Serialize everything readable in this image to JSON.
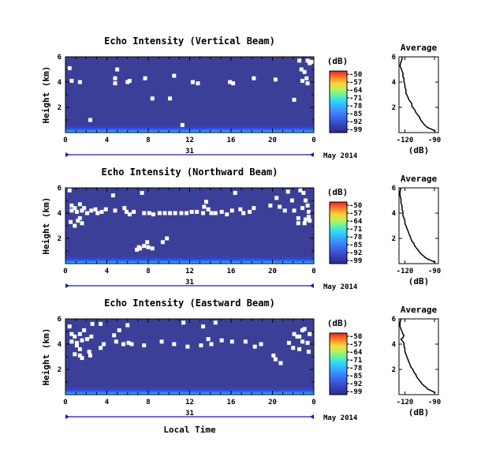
{
  "colors": {
    "background_fill": "#3b3f98",
    "surface_band": [
      "#2f45d8",
      "#2f7fff",
      "#35d7ff"
    ],
    "dropouts": "#ffffff",
    "colormap": [
      "#2b2b8a",
      "#3542b9",
      "#3a67ef",
      "#3b96ff",
      "#2fd2ff",
      "#59f2b5",
      "#b9f25c",
      "#ffd33b",
      "#ff7d26",
      "#e52222"
    ]
  },
  "chart_data": [
    {
      "type": "heatmap",
      "title": "Echo Intensity (Vertical Beam)",
      "xlabel": "",
      "ylabel": "Height (km)",
      "x_ticks": [
        "0",
        "4",
        "8",
        "12",
        "16",
        "20",
        "0"
      ],
      "y_ticks": [
        "2",
        "4",
        "6"
      ],
      "xlim": [
        0,
        24
      ],
      "ylim": [
        0,
        6
      ],
      "date_axis": {
        "day": "31",
        "label": "May 2014"
      },
      "colorbar": {
        "unit": "(dB)",
        "ticks": [
          "-50",
          "-57",
          "-64",
          "-71",
          "-78",
          "-85",
          "-92",
          "-99"
        ],
        "range": [
          -99,
          -50
        ]
      },
      "description_values": {
        "background_db": -97,
        "near_surface_max_db": -82,
        "surface_layer_top_km": 0.6
      },
      "gaps": [
        [
          0.4,
          5.1
        ],
        [
          0.6,
          4.1
        ],
        [
          1.4,
          4.0
        ],
        [
          4.8,
          3.9
        ],
        [
          5.0,
          5.0
        ],
        [
          4.8,
          4.3
        ],
        [
          6.0,
          4.0
        ],
        [
          6.2,
          4.1
        ],
        [
          7.7,
          4.3
        ],
        [
          10.5,
          4.5
        ],
        [
          12.3,
          4.0
        ],
        [
          12.8,
          3.9
        ],
        [
          15.9,
          4.0
        ],
        [
          16.2,
          3.9
        ],
        [
          18.2,
          4.3
        ],
        [
          20.3,
          4.2
        ],
        [
          22.1,
          2.6
        ],
        [
          22.6,
          5.7
        ],
        [
          22.8,
          5.0
        ],
        [
          23.1,
          4.8
        ],
        [
          23.3,
          4.3
        ],
        [
          22.9,
          4.1
        ],
        [
          23.4,
          3.9
        ],
        [
          23.6,
          5.6
        ],
        [
          23.6,
          5.5
        ],
        [
          23.4,
          5.7
        ],
        [
          23.8,
          5.6
        ],
        [
          11.3,
          0.6
        ],
        [
          8.4,
          2.7
        ],
        [
          10.1,
          2.7
        ],
        [
          2.4,
          1.0
        ]
      ]
    },
    {
      "type": "heatmap",
      "title": "Echo Intensity (Northward Beam)",
      "xlabel": "",
      "ylabel": "Height (km)",
      "x_ticks": [
        "0",
        "4",
        "8",
        "12",
        "16",
        "20",
        "0"
      ],
      "y_ticks": [
        "2",
        "4",
        "6"
      ],
      "xlim": [
        0,
        24
      ],
      "ylim": [
        0,
        6
      ],
      "date_axis": {
        "day": "31",
        "label": "May 2014"
      },
      "colorbar": {
        "unit": "(dB)",
        "ticks": [
          "-50",
          "-57",
          "-64",
          "-71",
          "-78",
          "-85",
          "-92",
          "-99"
        ],
        "range": [
          -99,
          -50
        ]
      },
      "description_values": {
        "background_db": -97,
        "near_surface_max_db": -82,
        "surface_layer_top_km": 0.6
      },
      "gaps": [
        [
          0.4,
          5.8
        ],
        [
          0.6,
          4.6
        ],
        [
          0.6,
          4.2
        ],
        [
          0.9,
          4.4
        ],
        [
          1.1,
          4.1
        ],
        [
          1.4,
          4.7
        ],
        [
          1.6,
          4.2
        ],
        [
          1.8,
          4.4
        ],
        [
          2.1,
          4.0
        ],
        [
          2.5,
          4.2
        ],
        [
          2.9,
          4.3
        ],
        [
          3.1,
          4.0
        ],
        [
          3.5,
          4.1
        ],
        [
          3.9,
          4.3
        ],
        [
          1.4,
          3.6
        ],
        [
          1.6,
          3.2
        ],
        [
          1.2,
          3.4
        ],
        [
          0.9,
          3.0
        ],
        [
          0.5,
          3.3
        ],
        [
          4.6,
          5.4
        ],
        [
          4.8,
          4.2
        ],
        [
          5.7,
          4.4
        ],
        [
          5.9,
          4.1
        ],
        [
          6.2,
          3.9
        ],
        [
          6.6,
          4.1
        ],
        [
          7.4,
          5.6
        ],
        [
          7.6,
          4.0
        ],
        [
          8.1,
          4.0
        ],
        [
          8.5,
          3.9
        ],
        [
          9.1,
          4.0
        ],
        [
          9.6,
          4.0
        ],
        [
          10.1,
          4.0
        ],
        [
          10.6,
          4.0
        ],
        [
          11.2,
          4.0
        ],
        [
          11.7,
          4.0
        ],
        [
          12.2,
          4.1
        ],
        [
          12.7,
          4.1
        ],
        [
          13.3,
          4.0
        ],
        [
          13.4,
          4.5
        ],
        [
          13.6,
          4.9
        ],
        [
          13.8,
          4.3
        ],
        [
          14.1,
          4.0
        ],
        [
          14.5,
          4.0
        ],
        [
          15.1,
          4.1
        ],
        [
          15.6,
          3.9
        ],
        [
          16.1,
          4.2
        ],
        [
          16.4,
          5.6
        ],
        [
          16.9,
          4.3
        ],
        [
          17.2,
          4.0
        ],
        [
          17.8,
          4.1
        ],
        [
          18.2,
          4.4
        ],
        [
          19.8,
          4.6
        ],
        [
          20.4,
          5.2
        ],
        [
          20.7,
          4.5
        ],
        [
          21.2,
          4.2
        ],
        [
          21.5,
          5.7
        ],
        [
          21.9,
          5.0
        ],
        [
          22.1,
          4.2
        ],
        [
          22.5,
          3.6
        ],
        [
          22.7,
          5.8
        ],
        [
          23.0,
          5.6
        ],
        [
          23.2,
          5.0
        ],
        [
          23.4,
          4.6
        ],
        [
          23.5,
          4.1
        ],
        [
          23.5,
          3.7
        ],
        [
          23.2,
          3.5
        ],
        [
          23.6,
          3.4
        ],
        [
          22.9,
          4.4
        ],
        [
          22.5,
          3.2
        ],
        [
          23.1,
          3.2
        ],
        [
          8.0,
          1.3
        ],
        [
          8.4,
          1.2
        ],
        [
          7.9,
          1.7
        ],
        [
          7.6,
          1.4
        ],
        [
          9.8,
          2.0
        ],
        [
          9.4,
          1.7
        ],
        [
          7.2,
          1.2
        ],
        [
          6.9,
          1.1
        ],
        [
          7.1,
          1.3
        ]
      ]
    },
    {
      "type": "heatmap",
      "title": "Echo Intensity (Eastward Beam)",
      "xlabel": "Local Time",
      "ylabel": "Height (km)",
      "x_ticks": [
        "0",
        "4",
        "8",
        "12",
        "16",
        "20",
        "0"
      ],
      "y_ticks": [
        "2",
        "4",
        "6"
      ],
      "xlim": [
        0,
        24
      ],
      "ylim": [
        0,
        6
      ],
      "date_axis": {
        "day": "31",
        "label": "May 2014"
      },
      "colorbar": {
        "unit": "(dB)",
        "ticks": [
          "-50",
          "-57",
          "-64",
          "-71",
          "-78",
          "-85",
          "-92",
          "-99"
        ],
        "range": [
          -99,
          -50
        ]
      },
      "description_values": {
        "background_db": -97,
        "near_surface_max_db": -82,
        "surface_layer_top_km": 0.6
      },
      "gaps": [
        [
          0.4,
          5.4
        ],
        [
          0.6,
          4.8
        ],
        [
          0.6,
          4.2
        ],
        [
          0.9,
          4.6
        ],
        [
          1.1,
          4.1
        ],
        [
          1.4,
          4.8
        ],
        [
          1.6,
          4.3
        ],
        [
          1.8,
          5.1
        ],
        [
          2.1,
          4.4
        ],
        [
          2.5,
          4.6
        ],
        [
          1.1,
          3.9
        ],
        [
          1.4,
          3.6
        ],
        [
          0.9,
          3.2
        ],
        [
          1.4,
          3.1
        ],
        [
          1.6,
          2.9
        ],
        [
          2.3,
          3.4
        ],
        [
          2.4,
          3.1
        ],
        [
          3.4,
          3.7
        ],
        [
          3.7,
          4.0
        ],
        [
          4.7,
          4.7
        ],
        [
          4.9,
          4.2
        ],
        [
          5.2,
          5.1
        ],
        [
          5.6,
          4.0
        ],
        [
          6.1,
          4.1
        ],
        [
          6.4,
          4.0
        ],
        [
          6.0,
          5.5
        ],
        [
          7.6,
          3.9
        ],
        [
          9.3,
          4.2
        ],
        [
          10.5,
          4.0
        ],
        [
          11.4,
          5.7
        ],
        [
          11.8,
          3.8
        ],
        [
          13.1,
          3.9
        ],
        [
          13.3,
          5.4
        ],
        [
          13.8,
          4.4
        ],
        [
          14.1,
          4.0
        ],
        [
          14.5,
          5.7
        ],
        [
          15.1,
          4.3
        ],
        [
          16.1,
          4.2
        ],
        [
          17.4,
          4.2
        ],
        [
          18.3,
          3.8
        ],
        [
          18.9,
          4.0
        ],
        [
          20.1,
          3.1
        ],
        [
          20.3,
          2.8
        ],
        [
          20.8,
          2.5
        ],
        [
          21.6,
          4.1
        ],
        [
          22.1,
          4.8
        ],
        [
          22.4,
          4.6
        ],
        [
          22.6,
          4.6
        ],
        [
          22.9,
          5.1
        ],
        [
          23.1,
          5.2
        ],
        [
          22.9,
          4.2
        ],
        [
          23.4,
          4.1
        ],
        [
          22.0,
          3.7
        ],
        [
          22.6,
          3.6
        ],
        [
          23.5,
          3.4
        ],
        [
          23.6,
          4.8
        ],
        [
          2.6,
          5.6
        ],
        [
          3.4,
          5.6
        ]
      ]
    },
    {
      "type": "line",
      "title": "Average",
      "xlabel": "(dB)",
      "ylabel": "",
      "x_ticks": [
        "-120",
        "-90"
      ],
      "y_ticks": [
        "2",
        "4",
        "6"
      ],
      "xlim": [
        -126,
        -86
      ],
      "ylim": [
        0,
        6
      ],
      "series": [
        {
          "name": "",
          "points": [
            [
              -123,
              6
            ],
            [
              -123,
              5.8
            ],
            [
              -124,
              5.6
            ],
            [
              -125,
              5.3
            ],
            [
              -124,
              5.1
            ],
            [
              -123,
              4.9
            ],
            [
              -122,
              4.7
            ],
            [
              -122,
              4.5
            ],
            [
              -122,
              4.4
            ],
            [
              -121,
              4.3
            ],
            [
              -121,
              4.0
            ],
            [
              -120,
              3.8
            ],
            [
              -120,
              3.6
            ],
            [
              -119,
              3.4
            ],
            [
              -119,
              3.1
            ],
            [
              -118,
              3.0
            ],
            [
              -117,
              2.8
            ],
            [
              -116,
              2.6
            ],
            [
              -114,
              2.4
            ],
            [
              -113,
              2.3
            ],
            [
              -113,
              2.1
            ],
            [
              -112,
              2.0
            ],
            [
              -110,
              1.8
            ],
            [
              -109,
              1.6
            ],
            [
              -107,
              1.4
            ],
            [
              -105,
              1.2
            ],
            [
              -104,
              1.0
            ],
            [
              -102,
              0.8
            ],
            [
              -100,
              0.6
            ],
            [
              -97,
              0.4
            ],
            [
              -94,
              0.3
            ],
            [
              -91,
              0.2
            ],
            [
              -89,
              0.1
            ]
          ]
        }
      ]
    },
    {
      "type": "line",
      "title": "Average",
      "xlabel": "(dB)",
      "ylabel": "",
      "x_ticks": [
        "-120",
        "-90"
      ],
      "y_ticks": [
        "2",
        "4",
        "6"
      ],
      "xlim": [
        -126,
        -86
      ],
      "ylim": [
        0,
        6
      ],
      "series": [
        {
          "name": "",
          "points": [
            [
              -124,
              6
            ],
            [
              -125,
              5.7
            ],
            [
              -125,
              5.4
            ],
            [
              -124,
              5.1
            ],
            [
              -124,
              4.8
            ],
            [
              -123,
              4.6
            ],
            [
              -123,
              4.3
            ],
            [
              -122,
              4.1
            ],
            [
              -122,
              3.8
            ],
            [
              -121,
              3.6
            ],
            [
              -120,
              3.4
            ],
            [
              -120,
              3.2
            ],
            [
              -119,
              3.0
            ],
            [
              -118,
              2.8
            ],
            [
              -117,
              2.6
            ],
            [
              -116,
              2.4
            ],
            [
              -115,
              2.2
            ],
            [
              -114,
              2.0
            ],
            [
              -113,
              1.8
            ],
            [
              -111,
              1.6
            ],
            [
              -110,
              1.4
            ],
            [
              -108,
              1.2
            ],
            [
              -106,
              1.0
            ],
            [
              -104,
              0.8
            ],
            [
              -101,
              0.6
            ],
            [
              -98,
              0.4
            ],
            [
              -95,
              0.3
            ],
            [
              -92,
              0.2
            ],
            [
              -89,
              0.1
            ]
          ]
        }
      ]
    },
    {
      "type": "line",
      "title": "Average",
      "xlabel": "(dB)",
      "ylabel": "",
      "x_ticks": [
        "-120",
        "-90"
      ],
      "y_ticks": [
        "2",
        "4",
        "6"
      ],
      "xlim": [
        -126,
        -86
      ],
      "ylim": [
        0,
        6
      ],
      "series": [
        {
          "name": "",
          "points": [
            [
              -124,
              6
            ],
            [
              -125,
              5.7
            ],
            [
              -125,
              5.4
            ],
            [
              -124,
              5.2
            ],
            [
              -123,
              5.0
            ],
            [
              -122,
              4.8
            ],
            [
              -121,
              4.7
            ],
            [
              -122,
              4.5
            ],
            [
              -124,
              4.4
            ],
            [
              -122,
              4.2
            ],
            [
              -121,
              4.1
            ],
            [
              -121,
              3.9
            ],
            [
              -120,
              3.6
            ],
            [
              -120,
              3.4
            ],
            [
              -119,
              3.2
            ],
            [
              -118,
              3.0
            ],
            [
              -117,
              2.8
            ],
            [
              -116,
              2.6
            ],
            [
              -115,
              2.4
            ],
            [
              -114,
              2.2
            ],
            [
              -112,
              2.0
            ],
            [
              -111,
              1.8
            ],
            [
              -109,
              1.6
            ],
            [
              -108,
              1.4
            ],
            [
              -106,
              1.2
            ],
            [
              -104,
              1.0
            ],
            [
              -102,
              0.8
            ],
            [
              -99,
              0.6
            ],
            [
              -96,
              0.4
            ],
            [
              -93,
              0.3
            ],
            [
              -89,
              0.15
            ]
          ]
        }
      ]
    }
  ]
}
